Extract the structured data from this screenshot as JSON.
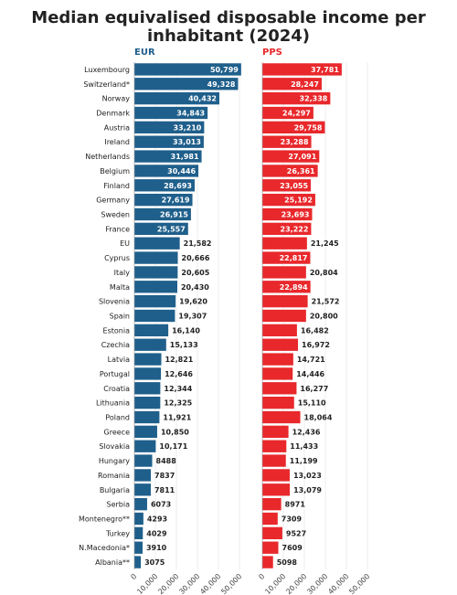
{
  "chart_data": {
    "type": "bar",
    "orientation": "horizontal",
    "title": "Median equivalised disposable income per\ninhabitant (2024)",
    "categories": [
      "Luxembourg",
      "Switzerland*",
      "Norway",
      "Denmark",
      "Austria",
      "Ireland",
      "Netherlands",
      "Belgium",
      "Finland",
      "Germany",
      "Sweden",
      "France",
      "EU",
      "Cyprus",
      "Italy",
      "Malta",
      "Slovenia",
      "Spain",
      "Estonia",
      "Czechia",
      "Latvia",
      "Portugal",
      "Croatia",
      "Lithuania",
      "Poland",
      "Greece",
      "Slovakia",
      "Hungary",
      "Romania",
      "Bulgaria",
      "Serbia",
      "Montenegro**",
      "Turkey",
      "N.Macedonia*",
      "Albania**"
    ],
    "series": [
      {
        "name": "EUR",
        "color": "#1f5f8b",
        "values": [
          50799,
          49328,
          40432,
          34843,
          33210,
          33013,
          31981,
          30446,
          28693,
          27619,
          26915,
          25557,
          21582,
          20666,
          20605,
          20430,
          19620,
          19307,
          16140,
          15133,
          12821,
          12646,
          12344,
          12325,
          11921,
          10850,
          10171,
          8488,
          7837,
          7811,
          6073,
          4293,
          4029,
          3910,
          3075
        ],
        "labels": [
          "50,799",
          "49,328",
          "40,432",
          "34,843",
          "33,210",
          "33,013",
          "31,981",
          "30,446",
          "28,693",
          "27,619",
          "26,915",
          "25,557",
          "21,582",
          "20,666",
          "20,605",
          "20,430",
          "19,620",
          "19,307",
          "16,140",
          "15,133",
          "12,821",
          "12,646",
          "12,344",
          "12,325",
          "11,921",
          "10,850",
          "10,171",
          "8488",
          "7837",
          "7811",
          "6073",
          "4293",
          "4029",
          "3910",
          "3075"
        ]
      },
      {
        "name": "PPS",
        "color": "#e8282b",
        "values": [
          37781,
          28247,
          32338,
          24297,
          29758,
          23288,
          27091,
          26361,
          23055,
          25192,
          23693,
          23222,
          21245,
          22817,
          20804,
          22894,
          21572,
          20800,
          16482,
          16972,
          14721,
          14446,
          16277,
          15110,
          18064,
          12436,
          11433,
          11199,
          13023,
          13079,
          8971,
          7309,
          9527,
          7609,
          5098
        ],
        "labels": [
          "37,781",
          "28,247",
          "32,338",
          "24,297",
          "29,758",
          "23,288",
          "27,091",
          "26,361",
          "23,055",
          "25,192",
          "23,693",
          "23,222",
          "21,245",
          "22,817",
          "20,804",
          "22,894",
          "21,572",
          "20,800",
          "16,482",
          "16,972",
          "14,721",
          "14,446",
          "16,277",
          "15,110",
          "18,064",
          "12,436",
          "11,433",
          "11,199",
          "13,023",
          "13,079",
          "8971",
          "7309",
          "9527",
          "7609",
          "5098"
        ]
      }
    ],
    "xlim": [
      0,
      50000
    ],
    "xticks": [
      0,
      10000,
      20000,
      30000,
      40000,
      50000
    ],
    "xtick_labels": [
      "0",
      "10,000",
      "20,000",
      "30,000",
      "40,000",
      "50,000"
    ],
    "grid": true
  }
}
